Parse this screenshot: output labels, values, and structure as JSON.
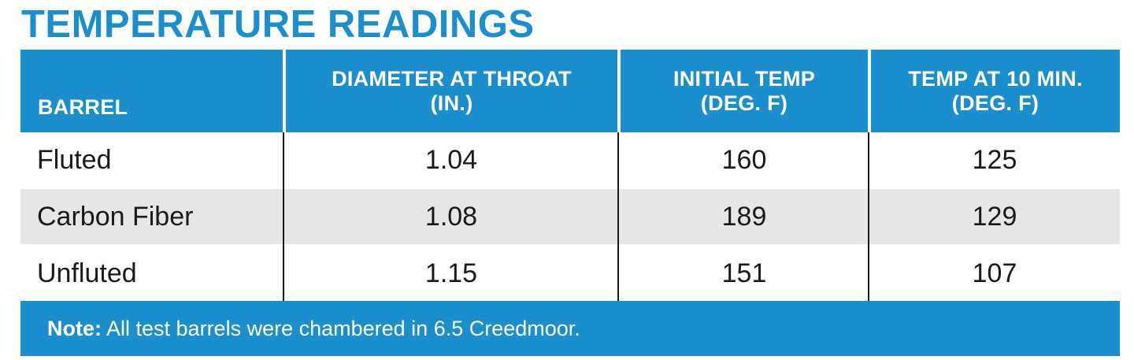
{
  "title": "TEMPERATURE READINGS",
  "colors": {
    "header_blue": "#1b8fcd",
    "alt_row_gray": "#e6e6e8",
    "text_dark": "#1a1a1a"
  },
  "table": {
    "headers": [
      {
        "line1": "BARREL",
        "line2": ""
      },
      {
        "line1": "DIAMETER AT THROAT",
        "line2": "(IN.)"
      },
      {
        "line1": "INITIAL TEMP",
        "line2": "(DEG. F)"
      },
      {
        "line1": "TEMP AT 10 MIN.",
        "line2": "(DEG. F)"
      }
    ],
    "rows": [
      [
        "Fluted",
        "1.04",
        "160",
        "125"
      ],
      [
        "Carbon Fiber",
        "1.08",
        "189",
        "129"
      ],
      [
        "Unfluted",
        "1.15",
        "151",
        "107"
      ]
    ]
  },
  "note": {
    "label": "Note:",
    "text": " All test barrels were chambered in 6.5 Creedmoor."
  }
}
